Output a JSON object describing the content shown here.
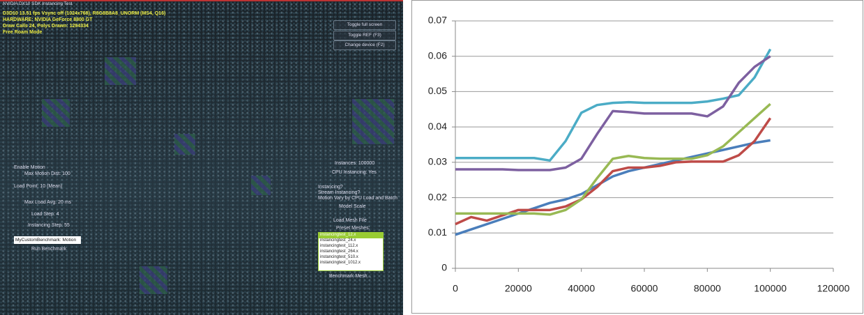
{
  "screen": {
    "window_title": "NVIDIA DX10 SDK Instancing Test",
    "stats": [
      "D3D10 13.51 fps Vsync off (1024x768), R8G8B8A8_UNORM (MS4, Q16)",
      "HARDWARE: NVIDIA GeForce 8800 GT",
      "Draw Calls 24, Polys Drawn: 1294334",
      "Free Roam Mode"
    ],
    "buttons": [
      "Toggle full screen",
      "Toggle REF (F3)",
      "Change device (F2)"
    ],
    "left_controls": [
      "Enable Motion",
      "Max Motion Dist: 100",
      "Load Point: 10 (Mean)",
      "Max Load Avg: 20 ms",
      "Load Step: 4",
      "Instancing Step: 55"
    ],
    "benchmark_name": "MyCustomBenchmark: Motion",
    "run_benchmark": "Run Benchmark",
    "right_controls": [
      "Instances: 100000",
      "CPU Instancing: Yes",
      "Instancing?",
      "Stream Instancing?",
      "Motion Vary by CPU Load and Batch",
      "Model Scale",
      "Load Mesh File",
      "Preset Meshes:"
    ],
    "mesh_list": [
      "instancingtest_12.x",
      "instancingtest_24.x",
      "instancingtest_112.x",
      "instancingtest_264.x",
      "instancingtest_510.x",
      "instancingtest_1012.x"
    ],
    "benchmark_mesh": "Benchmark Mesh..."
  },
  "chart_data": {
    "type": "line",
    "x": [
      0,
      5000,
      10000,
      15000,
      20000,
      25000,
      30000,
      35000,
      40000,
      45000,
      50000,
      55000,
      60000,
      65000,
      70000,
      75000,
      80000,
      85000,
      90000,
      95000,
      100000
    ],
    "series": [
      {
        "color": "#4a7ebb",
        "values": [
          0.0095,
          0.011,
          0.0125,
          0.014,
          0.0155,
          0.017,
          0.0185,
          0.0195,
          0.021,
          0.0235,
          0.026,
          0.0275,
          0.0285,
          0.0295,
          0.0305,
          0.0315,
          0.0325,
          0.0335,
          0.0345,
          0.0355,
          0.0362
        ]
      },
      {
        "color": "#be4b48",
        "values": [
          0.0125,
          0.0145,
          0.0135,
          0.015,
          0.0165,
          0.0165,
          0.0165,
          0.0175,
          0.0195,
          0.023,
          0.0275,
          0.0285,
          0.0285,
          0.029,
          0.03,
          0.0302,
          0.0302,
          0.0302,
          0.032,
          0.036,
          0.0425
        ]
      },
      {
        "color": "#98b954",
        "values": [
          0.0155,
          0.0155,
          0.0155,
          0.0155,
          0.0155,
          0.0155,
          0.0152,
          0.0165,
          0.0195,
          0.0255,
          0.031,
          0.0318,
          0.0312,
          0.031,
          0.031,
          0.031,
          0.032,
          0.0345,
          0.0385,
          0.0425,
          0.0465
        ]
      },
      {
        "color": "#4bacc6",
        "values": [
          0.0312,
          0.0312,
          0.0312,
          0.0312,
          0.0312,
          0.0312,
          0.0305,
          0.036,
          0.044,
          0.0462,
          0.0468,
          0.047,
          0.0468,
          0.0468,
          0.0468,
          0.0468,
          0.0472,
          0.048,
          0.049,
          0.054,
          0.062
        ]
      },
      {
        "color": "#7d60a0",
        "values": [
          0.028,
          0.028,
          0.028,
          0.028,
          0.0278,
          0.0278,
          0.0278,
          0.0285,
          0.031,
          0.038,
          0.0445,
          0.0442,
          0.0438,
          0.0438,
          0.0438,
          0.0438,
          0.043,
          0.0458,
          0.0525,
          0.057,
          0.06
        ]
      }
    ],
    "xlim": [
      0,
      120000
    ],
    "xticks": [
      0,
      20000,
      40000,
      60000,
      80000,
      100000,
      120000
    ],
    "ylim": [
      0,
      0.07
    ],
    "yticks": [
      0,
      0.01,
      0.02,
      0.03,
      0.04,
      0.05,
      0.06,
      0.07
    ],
    "grid": true
  }
}
